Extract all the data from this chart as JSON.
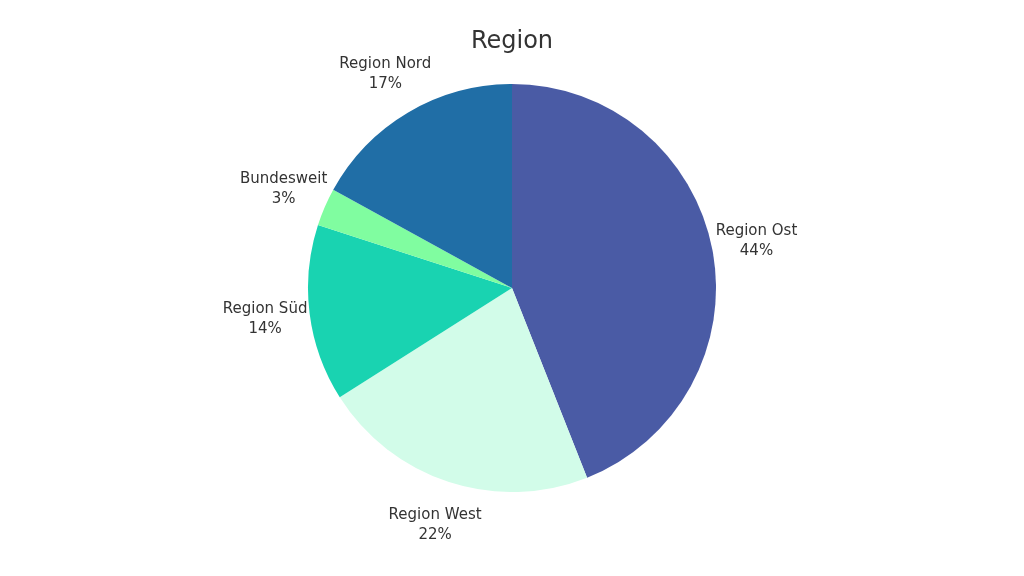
{
  "chart_data": {
    "type": "pie",
    "title": "Region",
    "categories": [
      "Region Ost",
      "Region West",
      "Region Süd",
      "Bundesweit",
      "Region Nord"
    ],
    "values": [
      44,
      22,
      14,
      3,
      17
    ],
    "value_labels": [
      "44%",
      "22%",
      "14%",
      "3%",
      "17%"
    ],
    "colors": [
      "#4a5ba5",
      "#d2fce9",
      "#19d3b1",
      "#80fda0",
      "#206ea6"
    ]
  }
}
